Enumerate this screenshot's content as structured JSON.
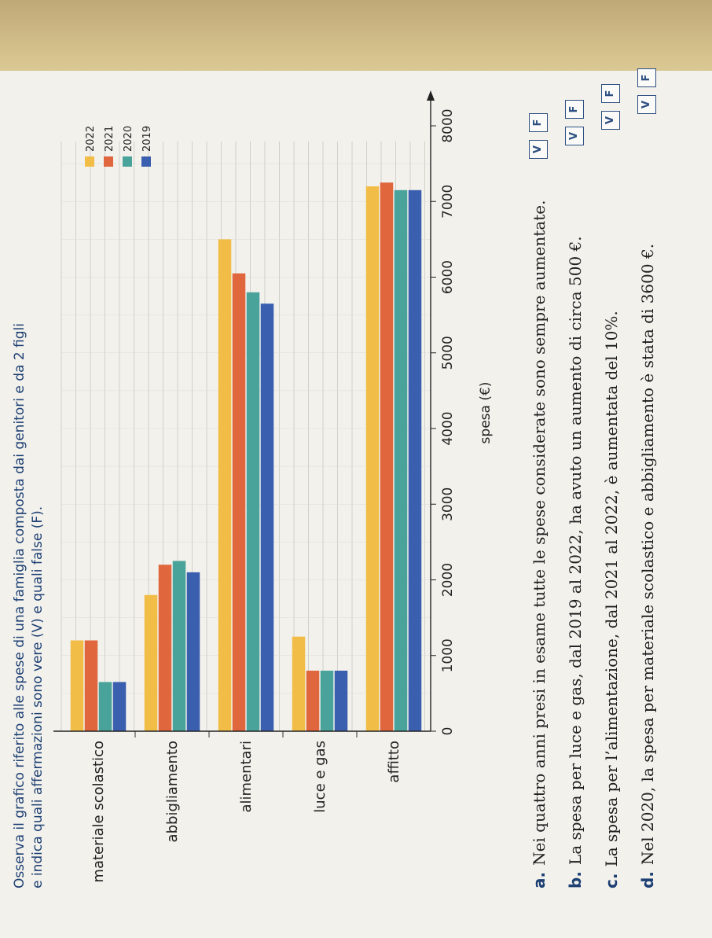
{
  "instructions": {
    "line1": "Osserva il grafico riferito alle spese di una famiglia composta dai genitori e da 2 figli",
    "line2": "e indica quali affermazioni sono vere (V) e quali false (F)."
  },
  "chart_data": {
    "type": "bar",
    "orientation": "horizontal",
    "categories": [
      "materiale scolastico",
      "abbigliamento",
      "alimentari",
      "luce e gas",
      "affitto"
    ],
    "series": [
      {
        "name": "2022",
        "color": "#f2bd47",
        "values": [
          1200,
          1800,
          6500,
          1250,
          7200
        ]
      },
      {
        "name": "2021",
        "color": "#e0663d",
        "values": [
          1200,
          2200,
          6050,
          800,
          7250
        ]
      },
      {
        "name": "2020",
        "color": "#4aa39a",
        "values": [
          650,
          2250,
          5800,
          800,
          7150
        ]
      },
      {
        "name": "2019",
        "color": "#3a5fae",
        "values": [
          650,
          2100,
          5650,
          800,
          7150
        ]
      }
    ],
    "xlabel": "spesa (€)",
    "xlim": [
      0,
      8000
    ],
    "xticks": [
      "0",
      "1000",
      "2000",
      "3000",
      "4000",
      "5000",
      "6000",
      "7000",
      "8000"
    ],
    "grid": true,
    "legend_position": "top-right"
  },
  "statements": [
    {
      "letter": "a.",
      "text": "Nei quattro anni presi in esame tutte le spese considerate sono sempre aumentate.",
      "v": "V",
      "f": "F"
    },
    {
      "letter": "b.",
      "text": "La spesa per luce e gas, dal 2019 al 2022, ha avuto un aumento di circa 500 €.",
      "v": "V",
      "f": "F"
    },
    {
      "letter": "c.",
      "text": "La spesa per l’alimentazione, dal 2021 al 2022, è aumentata del 10%.",
      "v": "V",
      "f": "F"
    },
    {
      "letter": "d.",
      "text": "Nel 2020, la spesa per materiale scolastico e abbigliamento è stata di 3600 €.",
      "v": "V",
      "f": "F"
    }
  ]
}
